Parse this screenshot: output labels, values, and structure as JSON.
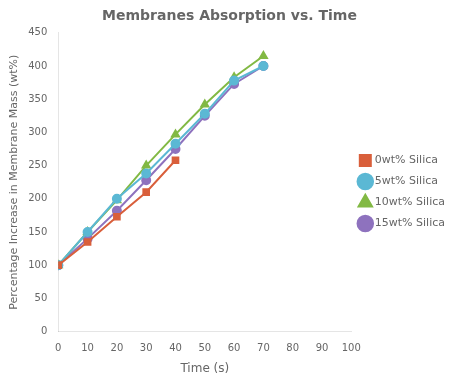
{
  "chart_data": {
    "type": "line",
    "title": "Membranes Absorption vs. Time",
    "x_label": "Time (s)",
    "y_label": "Percentage Increase in Membrane Mass (wt%)",
    "xlim": [
      0,
      100
    ],
    "ylim": [
      0,
      450
    ],
    "xticks": [
      0,
      10,
      20,
      30,
      40,
      50,
      60,
      70,
      80,
      90,
      100
    ],
    "yticks": [
      0,
      50,
      100,
      150,
      200,
      250,
      300,
      350,
      400,
      450
    ],
    "grid": false,
    "legend": "right",
    "series": [
      {
        "name": "0wt% Silica",
        "color": "#d95f3b",
        "marker": "square",
        "x": [
          0,
          10,
          20,
          30,
          40
        ],
        "values": [
          100,
          135,
          173,
          210,
          258
        ]
      },
      {
        "name": "5wt% Silica",
        "color": "#5bb8d4",
        "marker": "circle",
        "x": [
          0,
          10,
          20,
          30,
          40,
          50,
          60,
          70
        ],
        "values": [
          100,
          150,
          200,
          238,
          283,
          328,
          378,
          400
        ]
      },
      {
        "name": "10wt% Silica",
        "color": "#82b944",
        "marker": "triangle",
        "x": [
          0,
          10,
          20,
          30,
          40,
          50,
          60,
          70
        ],
        "values": [
          100,
          150,
          198,
          250,
          297,
          342,
          383,
          415
        ]
      },
      {
        "name": "15wt% Silica",
        "color": "#8e72be",
        "marker": "circle",
        "x": [
          0,
          10,
          20,
          30,
          40,
          50,
          60,
          70
        ],
        "values": [
          100,
          140,
          182,
          228,
          275,
          325,
          373,
          400
        ]
      }
    ]
  }
}
